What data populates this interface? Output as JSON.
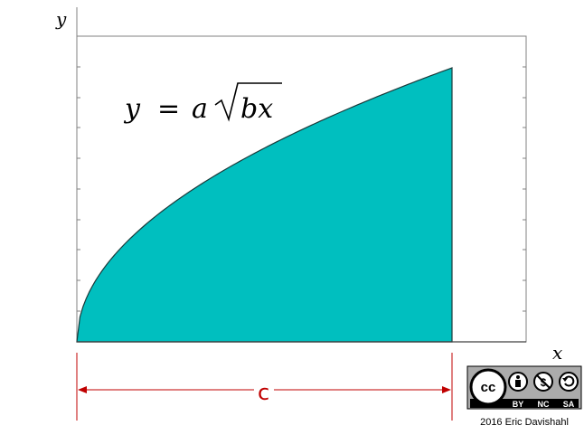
{
  "axes": {
    "x_label": "x",
    "y_label": "y"
  },
  "equation": {
    "lhs": "y",
    "equals": "=",
    "coef": "a",
    "radicand": "bx"
  },
  "dimension": {
    "label": "c"
  },
  "license": {
    "cc_label": "cc",
    "terms": [
      "BY",
      "NC",
      "SA"
    ]
  },
  "credit": "2016 Eric Davishahl",
  "colors": {
    "fill": "#00bfbf",
    "dimension": "#c00000"
  }
}
